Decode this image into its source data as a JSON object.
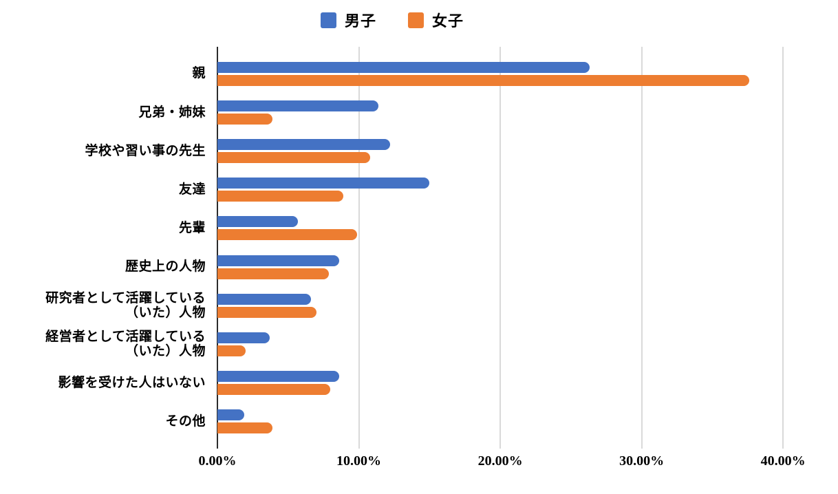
{
  "chart_data": {
    "type": "bar",
    "orientation": "horizontal",
    "title": "",
    "xlabel": "",
    "ylabel": "",
    "xlim": [
      0,
      43.3
    ],
    "grid": true,
    "legend_position": "top",
    "categories": [
      "親",
      "兄弟・姉妹",
      "学校や習い事の先生",
      "友達",
      "先輩",
      "歴史上の人物",
      "研究者として活躍している（いた）人物",
      "経営者として活躍している（いた）人物",
      "影響を受けた人はいない",
      "その他"
    ],
    "category_display_lines": [
      [
        "親"
      ],
      [
        "兄弟・姉妹"
      ],
      [
        "学校や習い事の先生"
      ],
      [
        "友達"
      ],
      [
        "先輩"
      ],
      [
        "歴史上の人物"
      ],
      [
        "研究者として活躍している",
        "（いた）人物"
      ],
      [
        "経営者として活躍している",
        "（いた）人物"
      ],
      [
        "影響を受けた人はいない"
      ],
      [
        "その他"
      ]
    ],
    "series": [
      {
        "name": "男子",
        "color": "#4472C4",
        "values": [
          26.3,
          11.4,
          12.2,
          15.0,
          5.7,
          8.6,
          6.6,
          3.7,
          8.6,
          1.9
        ]
      },
      {
        "name": "女子",
        "color": "#ED7D31",
        "values": [
          37.6,
          3.9,
          10.8,
          8.9,
          9.9,
          7.9,
          7.0,
          2.0,
          8.0,
          3.9
        ]
      }
    ],
    "x_ticks": [
      {
        "value": 0,
        "label": "0.00%"
      },
      {
        "value": 10,
        "label": "10.00%"
      },
      {
        "value": 20,
        "label": "20.00%"
      },
      {
        "value": 30,
        "label": "30.00%"
      },
      {
        "value": 40,
        "label": "40.00%"
      }
    ]
  },
  "style_colors": {
    "gridline": "#d9d9d9",
    "axis_line": "#2b2b2b",
    "text": "#000000"
  }
}
